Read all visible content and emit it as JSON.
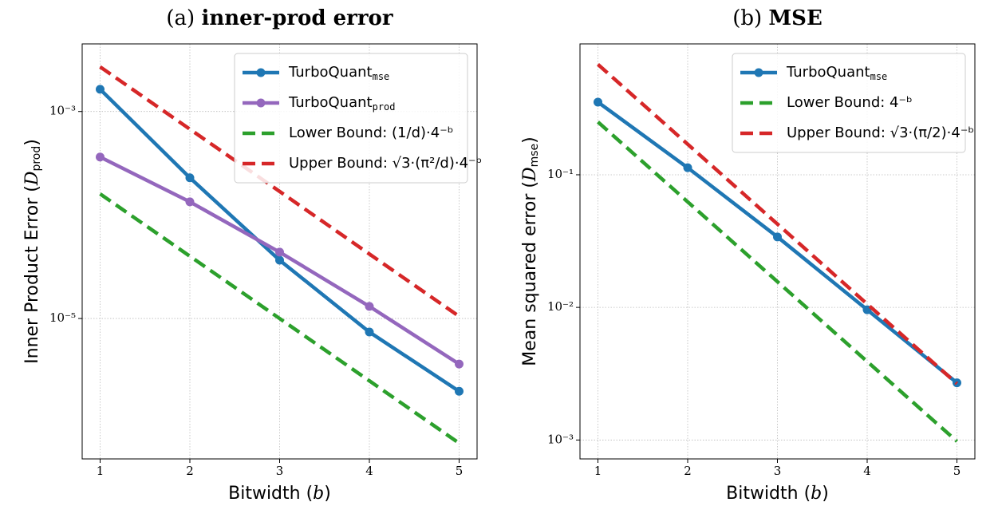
{
  "chart_data": [
    {
      "type": "line",
      "title_prefix": "(a)",
      "title": "inner-prod error",
      "xlabel": "Bitwidth (",
      "xlabel_var": "b",
      "xlabel_end": ")",
      "ylabel": "Inner Product Error (",
      "ylabel_var": "D",
      "ylabel_sub": "prod",
      "ylabel_end": ")",
      "x": [
        1,
        2,
        3,
        4,
        5
      ],
      "xlim": [
        0.8,
        5.2
      ],
      "xticks": [
        1,
        2,
        3,
        4,
        5
      ],
      "log_y": true,
      "ylim": [
        4.4e-07,
        0.0045
      ],
      "yticks": [
        {
          "value": 0.001,
          "label": "10⁻³"
        },
        {
          "value": 1e-05,
          "label": "10⁻⁵"
        }
      ],
      "grid": true,
      "legend": "upper right",
      "series": [
        {
          "name": "TurboQuant",
          "sub": "mse",
          "color": "#1f77b4",
          "style": "solid",
          "marker": true,
          "values": [
            0.00164,
            0.000229,
            3.66e-05,
            7.4e-06,
            1.98e-06
          ]
        },
        {
          "name": "TurboQuant",
          "sub": "prod",
          "color": "#9467bd",
          "style": "solid",
          "marker": true,
          "values": [
            0.000363,
            0.000134,
            4.38e-05,
            1.31e-05,
            3.63e-06
          ]
        },
        {
          "name": "Lower Bound: (1/d)·4⁻ᵇ",
          "color": "#2ca02c",
          "style": "dashed",
          "marker": false,
          "values": [
            0.00016,
            4e-05,
            1e-05,
            2.5e-06,
            6.25e-07
          ]
        },
        {
          "name": "Upper Bound: √3·(π²/d)·4⁻ᵇ",
          "color": "#d62728",
          "style": "dashed",
          "marker": false,
          "values": [
            0.0027,
            0.000675,
            0.000169,
            4.2e-05,
            1.05e-05
          ]
        }
      ]
    },
    {
      "type": "line",
      "title_prefix": "(b)",
      "title": "MSE",
      "xlabel": "Bitwidth (",
      "xlabel_var": "b",
      "xlabel_end": ")",
      "ylabel": "Mean squared error (",
      "ylabel_var": "D",
      "ylabel_sub": "mse",
      "ylabel_end": ")",
      "x": [
        1,
        2,
        3,
        4,
        5
      ],
      "xlim": [
        0.8,
        5.2
      ],
      "xticks": [
        1,
        2,
        3,
        4,
        5
      ],
      "log_y": true,
      "ylim": [
        0.00072,
        0.97
      ],
      "yticks": [
        {
          "value": 0.1,
          "label": "10⁻¹"
        },
        {
          "value": 0.01,
          "label": "10⁻²"
        },
        {
          "value": 0.001,
          "label": "10⁻³"
        }
      ],
      "grid": true,
      "legend": "upper right",
      "series": [
        {
          "name": "TurboQuant",
          "sub": "mse",
          "color": "#1f77b4",
          "style": "solid",
          "marker": true,
          "values": [
            0.353,
            0.113,
            0.034,
            0.0096,
            0.0027
          ]
        },
        {
          "name": "Lower Bound: 4⁻ᵇ",
          "color": "#2ca02c",
          "style": "dashed",
          "marker": false,
          "values": [
            0.25,
            0.0625,
            0.015625,
            0.00390625,
            0.0009765625
          ]
        },
        {
          "name": "Upper Bound: √3·(π/2)·4⁻ᵇ",
          "color": "#d62728",
          "style": "dashed",
          "marker": false,
          "values": [
            0.68,
            0.17,
            0.0425,
            0.0106,
            0.00266
          ]
        }
      ]
    }
  ]
}
